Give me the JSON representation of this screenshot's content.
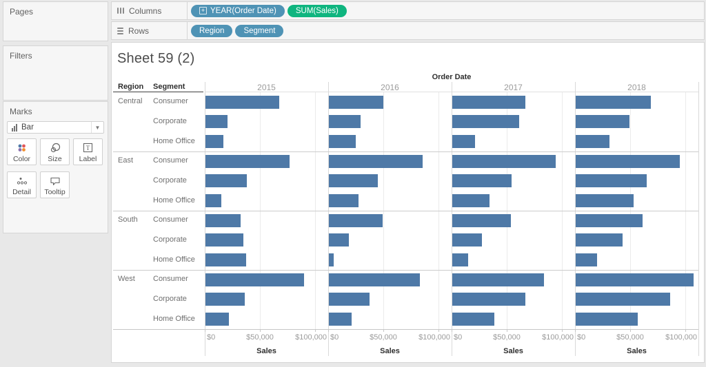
{
  "sidebar": {
    "pages": {
      "title": "Pages"
    },
    "filters": {
      "title": "Filters"
    },
    "marks": {
      "title": "Marks",
      "mark_type": "Bar",
      "buttons": [
        {
          "label": "Color"
        },
        {
          "label": "Size"
        },
        {
          "label": "Label"
        },
        {
          "label": "Detail"
        },
        {
          "label": "Tooltip"
        }
      ]
    }
  },
  "shelves": {
    "columns": {
      "label": "Columns",
      "pills": [
        {
          "label": "YEAR(Order Date)",
          "type": "dimension",
          "has_expand_icon": true
        },
        {
          "label": "SUM(Sales)",
          "type": "measure",
          "has_expand_icon": false
        }
      ]
    },
    "rows": {
      "label": "Rows",
      "pills": [
        {
          "label": "Region",
          "type": "dimension",
          "has_expand_icon": false
        },
        {
          "label": "Segment",
          "type": "dimension",
          "has_expand_icon": false
        }
      ]
    }
  },
  "sheet": {
    "title": "Sheet 59 (2)"
  },
  "chart_data": {
    "type": "bar",
    "title": "Sheet 59 (2)",
    "column_header": "Order Date",
    "row_header_labels": [
      "Region",
      "Segment"
    ],
    "years": [
      "2015",
      "2016",
      "2017",
      "2018"
    ],
    "regions": [
      "Central",
      "East",
      "South",
      "West"
    ],
    "segments": [
      "Consumer",
      "Corporate",
      "Home Office"
    ],
    "axis": {
      "tick_labels": [
        "$0",
        "$50,000",
        "$100,000"
      ],
      "tick_values": [
        0,
        50000,
        100000
      ],
      "axis_title": "Sales",
      "xlim": [
        0,
        112000
      ]
    },
    "bar_color": "#4e79a7",
    "series": [
      {
        "year": "2015",
        "values": [
          [
            67000,
            20000,
            16500
          ],
          [
            76500,
            37500,
            14500
          ],
          [
            32000,
            34500,
            37000
          ],
          [
            89500,
            35500,
            21500
          ]
        ]
      },
      {
        "year": "2016",
        "values": [
          [
            49500,
            29000,
            24500
          ],
          [
            85000,
            44500,
            27000
          ],
          [
            49000,
            18000,
            4500
          ],
          [
            82500,
            37000,
            20500
          ]
        ]
      },
      {
        "year": "2017",
        "values": [
          [
            66500,
            60500,
            20500
          ],
          [
            93500,
            53500,
            34000
          ],
          [
            53000,
            27000,
            14500
          ],
          [
            83000,
            66500,
            38000
          ]
        ]
      },
      {
        "year": "2018",
        "values": [
          [
            68000,
            48500,
            30500
          ],
          [
            94500,
            64500,
            52500
          ],
          [
            60500,
            42500,
            19500
          ],
          [
            106700,
            85800,
            56500
          ]
        ]
      }
    ],
    "legend_position": "none",
    "grid": true
  }
}
